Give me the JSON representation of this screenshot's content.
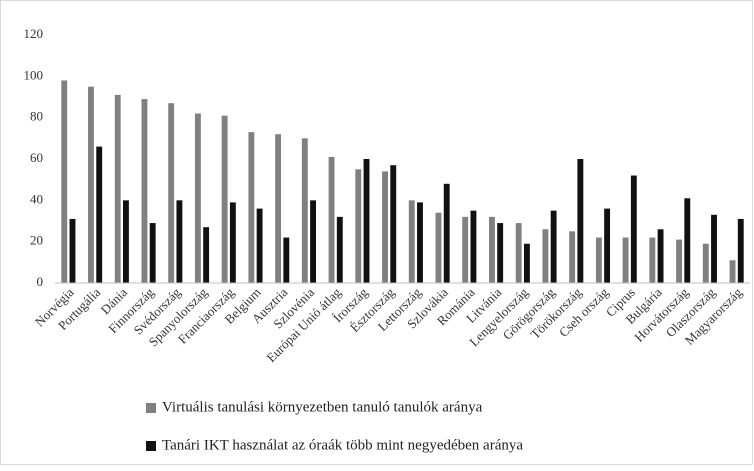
{
  "chart_data": {
    "type": "bar",
    "categories": [
      "Norvégia",
      "Portugália",
      "Dánia",
      "Finnország",
      "Svédország",
      "Spanyolország",
      "Franciaország",
      "Belgium",
      "Ausztria",
      "Szlovénia",
      "Európai Unió átlag",
      "Írország",
      "Észtország",
      "Lettország",
      "Szlovákia",
      "Románia",
      "Litvánia",
      "Lengyelország",
      "Görögország",
      "Törökország",
      "Cseh ország",
      "Ciprus",
      "Bulgária",
      "Horvátország",
      "Olaszország",
      "Magyarország"
    ],
    "series": [
      {
        "name": "Virtuális tanulási környezetben tanuló tanulók aránya",
        "color": "#808080",
        "values": [
          98,
          95,
          91,
          89,
          87,
          82,
          81,
          73,
          72,
          70,
          61,
          55,
          54,
          40,
          34,
          32,
          32,
          29,
          26,
          25,
          22,
          22,
          22,
          21,
          19,
          11
        ]
      },
      {
        "name": "Tanári IKT használat az óraák több mint negyedében aránya",
        "color": "#111111",
        "values": [
          31,
          66,
          40,
          29,
          40,
          27,
          39,
          36,
          22,
          40,
          32,
          60,
          57,
          39,
          48,
          35,
          29,
          19,
          35,
          60,
          36,
          52,
          26,
          41,
          33,
          31
        ]
      }
    ],
    "ylim": [
      0,
      120
    ],
    "yticks": [
      0,
      20,
      40,
      60,
      80,
      100,
      120
    ],
    "grid": false,
    "legend": "bottom"
  }
}
